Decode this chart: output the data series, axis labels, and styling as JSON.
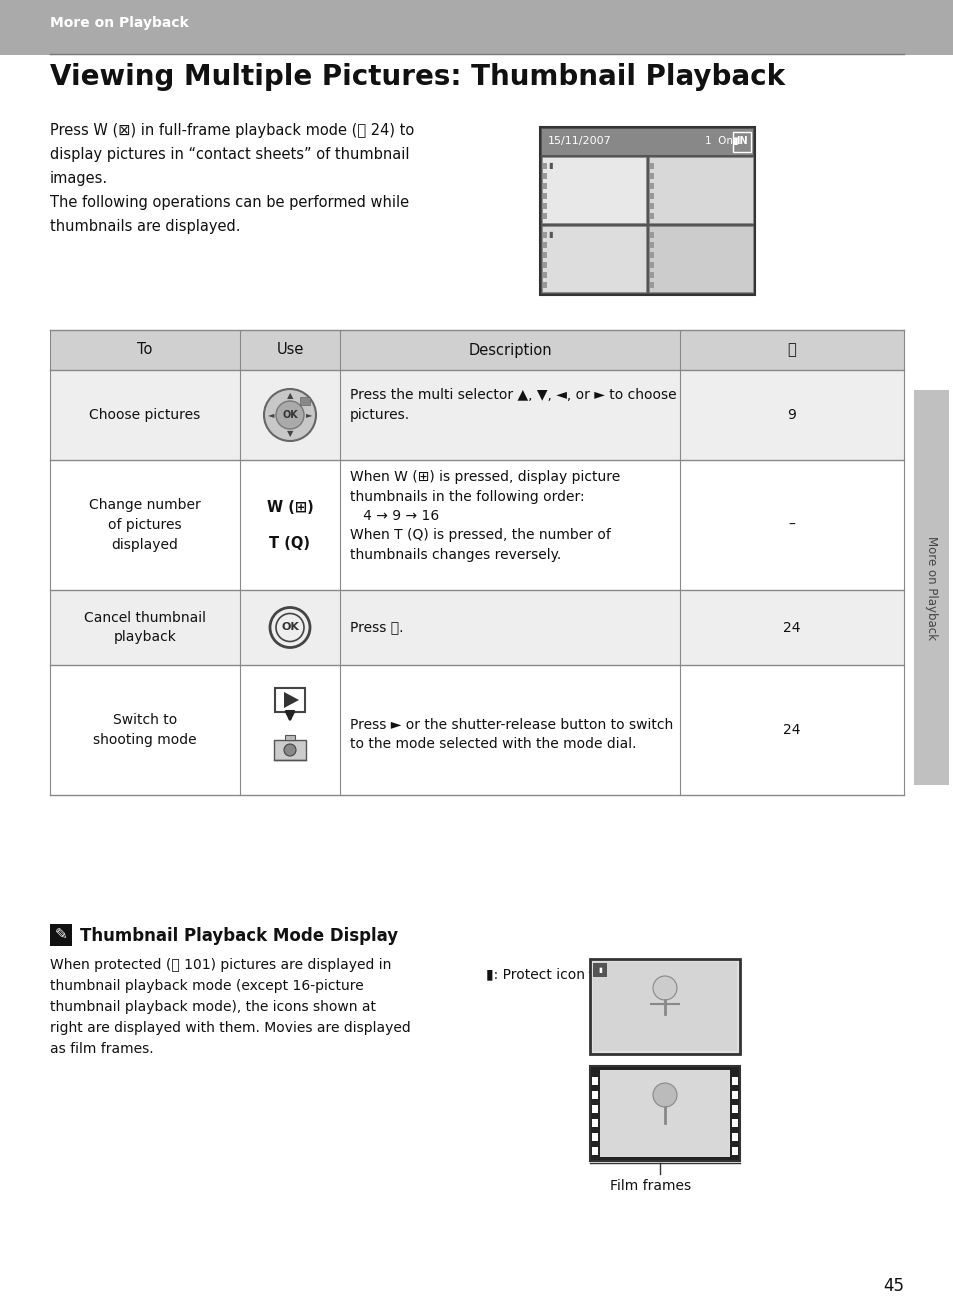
{
  "bg_color": "#ffffff",
  "header_bg": "#aaaaaa",
  "header_label": "More on Playback",
  "title": "Viewing Multiple Pictures: Thumbnail Playback",
  "intro_lines": [
    "Press W (⊠) in full-frame playback mode (Ⓡ 24) to",
    "display pictures in “contact sheets” of thumbnail",
    "images.",
    "The following operations can be performed while",
    "thumbnails are displayed."
  ],
  "table_header_bg": "#d0d0d0",
  "table_row_bg_light": "#eeeeee",
  "table_row_bg_white": "#ffffff",
  "table_cols": [
    "To",
    "Use",
    "Description",
    "Ⓡ"
  ],
  "rows": [
    {
      "to": "Choose pictures",
      "description": "Press the multi selector ▲, ▼, ◄, or ► to choose\npictures.",
      "ref": "9"
    },
    {
      "to": "Change number\nof pictures\ndisplayed",
      "description": "When W (⊠) is pressed, display picture\nthumbnails in the following order:\n   4 → 9 → 16\nWhen T (Q) is pressed, the number of\nthumbnails changes reversely.",
      "ref": "–"
    },
    {
      "to": "Cancel thumbnail\nplayback",
      "description": "Press ⓞ.",
      "ref": "24"
    },
    {
      "to": "Switch to\nshooting mode",
      "description": "Press ► or the shutter-release button to switch\nto the mode selected with the mode dial.",
      "ref": "24"
    }
  ],
  "note_title": "Thumbnail Playback Mode Display",
  "note_text_lines": [
    "When protected (Ⓡ 101) pictures are displayed in",
    "thumbnail playback mode (except 16-picture",
    "thumbnail playback mode), the icons shown at",
    "right are displayed with them. Movies are displayed",
    "as film frames."
  ],
  "protect_label": "▮: Protect icon",
  "film_label": "Film frames",
  "sidebar_text": "More on Playback",
  "page_number": "45"
}
